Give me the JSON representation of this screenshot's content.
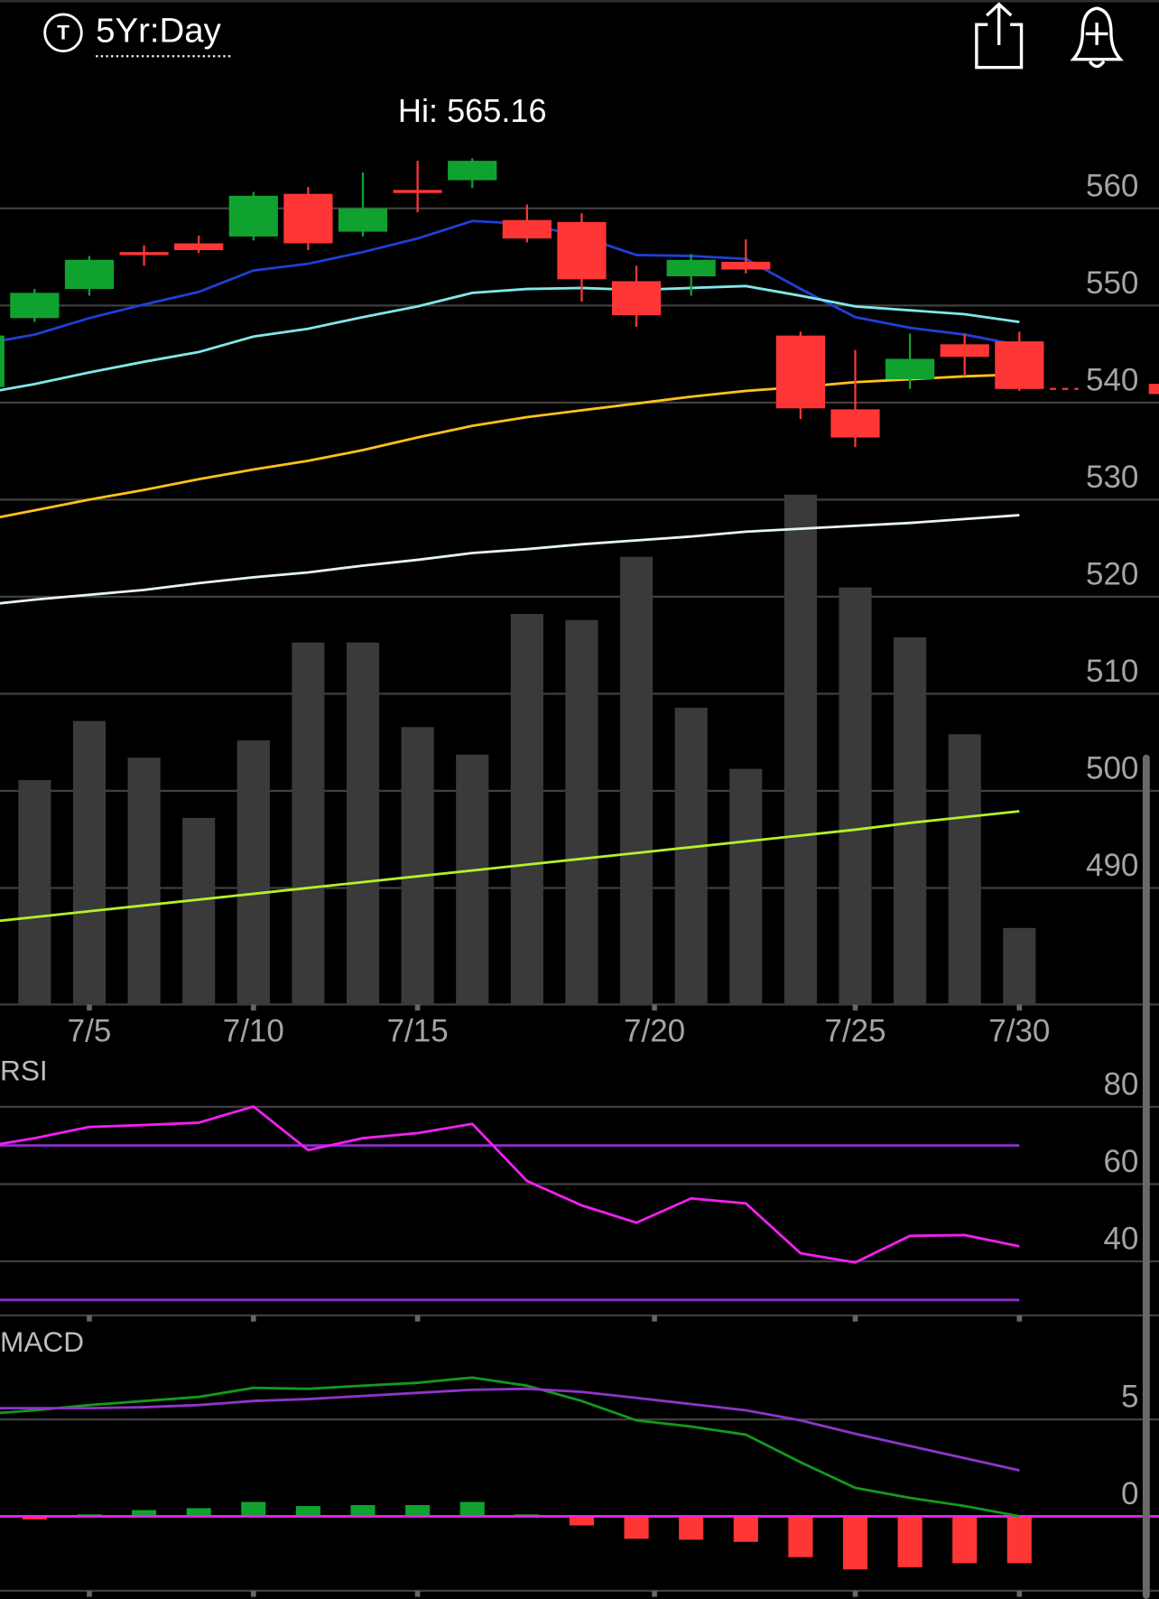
{
  "header": {
    "icon_letter": "T",
    "timeframe": "5Yr:Day"
  },
  "chart_data": [
    {
      "type": "candlestick",
      "annotation": "Hi: 565.16",
      "x": [
        -1,
        0,
        1,
        2,
        3,
        4,
        5,
        6,
        7,
        8,
        9,
        10,
        11,
        12,
        13,
        14,
        15,
        16,
        17,
        18
      ],
      "open": [
        541.6,
        548.7,
        551.7,
        555.5,
        556.4,
        557.1,
        561.5,
        557.6,
        561.9,
        562.9,
        558.8,
        558.6,
        552.5,
        553.0,
        554.5,
        546.9,
        539.3,
        542.4,
        546.0,
        546.3
      ],
      "high": [
        547.5,
        551.7,
        555.1,
        556.2,
        557.2,
        561.7,
        562.2,
        563.7,
        564.9,
        565.16,
        560.4,
        559.5,
        554.1,
        555.3,
        556.8,
        547.3,
        545.4,
        547.1,
        547.1,
        547.3
      ],
      "low": [
        540.5,
        548.3,
        551.0,
        554.1,
        555.4,
        556.7,
        555.7,
        557.1,
        559.6,
        562.1,
        556.5,
        550.4,
        547.8,
        551.0,
        553.3,
        538.3,
        535.4,
        541.4,
        542.7,
        541.2
      ],
      "close": [
        546.9,
        551.3,
        554.7,
        555.3,
        555.7,
        561.3,
        556.4,
        560.0,
        561.7,
        564.9,
        556.9,
        552.7,
        549.0,
        554.7,
        553.7,
        539.4,
        536.4,
        544.5,
        544.7,
        541.4
      ],
      "up_color": "#10a22f",
      "down_color": "#ff3636",
      "moving_averages": [
        {
          "color": "#1f3fd6",
          "values": [
            546.0,
            547.0,
            548.7,
            550.1,
            551.4,
            553.6,
            554.3,
            555.5,
            556.9,
            558.7,
            558.4,
            557.1,
            555.2,
            555.1,
            554.8,
            551.7,
            548.8,
            547.7,
            547.0,
            545.9
          ]
        },
        {
          "color": "#7fe8ea",
          "values": [
            540.9,
            541.9,
            543.1,
            544.2,
            545.2,
            546.8,
            547.6,
            548.8,
            549.9,
            551.3,
            551.7,
            551.8,
            551.6,
            551.8,
            552.0,
            551.0,
            549.9,
            549.5,
            549.1,
            548.3
          ]
        },
        {
          "color": "#ffc21a",
          "values": [
            527.8,
            528.9,
            530.0,
            531.0,
            532.1,
            533.1,
            534.0,
            535.1,
            536.4,
            537.6,
            538.5,
            539.2,
            539.9,
            540.6,
            541.2,
            541.6,
            542.1,
            542.4,
            542.7,
            542.9
          ]
        },
        {
          "color": "#e6f4f4",
          "values": [
            519.1,
            519.7,
            520.2,
            520.7,
            521.4,
            522.0,
            522.5,
            523.2,
            523.8,
            524.5,
            524.9,
            525.4,
            525.8,
            526.2,
            526.7,
            527.0,
            527.3,
            527.6,
            528.0,
            528.4
          ]
        },
        {
          "color": "#b4f02a",
          "values": [
            486.4,
            487.0,
            487.6,
            488.2,
            488.8,
            489.4,
            490.0,
            490.6,
            491.2,
            491.8,
            492.4,
            493.0,
            493.6,
            494.2,
            494.8,
            495.4,
            496.0,
            496.7,
            497.3,
            497.9
          ]
        }
      ],
      "volume": {
        "color": "#3a3a3a",
        "lim": [
          0,
          100
        ],
        "values": [
          null,
          44,
          55.6,
          48.4,
          36.6,
          51.8,
          71,
          71,
          54.4,
          49,
          76.6,
          75.4,
          87.8,
          58.2,
          46.2,
          100,
          81.8,
          72,
          53,
          15
        ]
      },
      "xlim": [
        -0.633,
        20.552
      ],
      "xticks": [
        {
          "value": 1,
          "label": "7/5"
        },
        {
          "value": 4,
          "label": "7/10"
        },
        {
          "value": 7,
          "label": "7/15"
        },
        {
          "value": 11.33,
          "label": "7/20"
        },
        {
          "value": 15,
          "label": "7/25"
        },
        {
          "value": 18,
          "label": "7/30"
        }
      ],
      "ylim": [
        478,
        572
      ],
      "yticks": [
        490,
        500,
        510,
        520,
        530,
        540,
        550,
        560
      ],
      "grid": true
    },
    {
      "type": "line",
      "title": "RSI",
      "x": [
        -1,
        0,
        1,
        2,
        3,
        4,
        5,
        6,
        7,
        8,
        9,
        10,
        11,
        12,
        13,
        14,
        15,
        16,
        17,
        18
      ],
      "series": [
        {
          "color": "#f020f0",
          "values": [
            69.5,
            71.9,
            74.8,
            75.3,
            75.9,
            80.1,
            68.8,
            71.9,
            73.2,
            75.6,
            60.8,
            54.5,
            50.0,
            56.3,
            55.0,
            42.1,
            39.7,
            46.6,
            46.8,
            43.9
          ]
        }
      ],
      "reference_lines": [
        70,
        30
      ],
      "reference_color": "#8a2fc9",
      "xlim": [
        -0.633,
        20.552
      ],
      "ylim": [
        26,
        92
      ],
      "yticks": [
        40,
        60,
        80
      ],
      "grid": true
    },
    {
      "type": "macd",
      "title": "MACD",
      "x": [
        -1,
        0,
        1,
        2,
        3,
        4,
        5,
        6,
        7,
        8,
        9,
        10,
        11,
        12,
        13,
        14,
        15,
        16,
        17,
        18
      ],
      "series": [
        {
          "color": "#139a1c",
          "values": [
            5.26,
            5.47,
            5.74,
            5.95,
            6.16,
            6.63,
            6.58,
            6.74,
            6.89,
            7.16,
            6.74,
            5.95,
            4.95,
            4.63,
            4.21,
            2.79,
            1.47,
            0.95,
            0.53,
            0.0
          ]
        },
        {
          "color": "#8f35c9",
          "values": [
            5.58,
            5.58,
            5.58,
            5.63,
            5.74,
            5.95,
            6.05,
            6.21,
            6.37,
            6.53,
            6.58,
            6.42,
            6.11,
            5.79,
            5.47,
            4.95,
            4.26,
            3.63,
            3.0,
            2.37
          ]
        }
      ],
      "histogram": {
        "up_color": "#10a22f",
        "down_color": "#ff3636",
        "values": [
          null,
          -0.16,
          0.1,
          0.32,
          0.42,
          0.74,
          0.53,
          0.58,
          0.58,
          0.74,
          0.1,
          -0.47,
          -1.16,
          -1.21,
          -1.32,
          -2.11,
          -2.74,
          -2.63,
          -2.42,
          -2.42
        ]
      },
      "zero_line_color": "#f020f0",
      "xlim": [
        -0.633,
        20.552
      ],
      "ylim": [
        -3.84,
        9.84
      ],
      "yticks": [
        0,
        5
      ],
      "grid": true
    }
  ]
}
